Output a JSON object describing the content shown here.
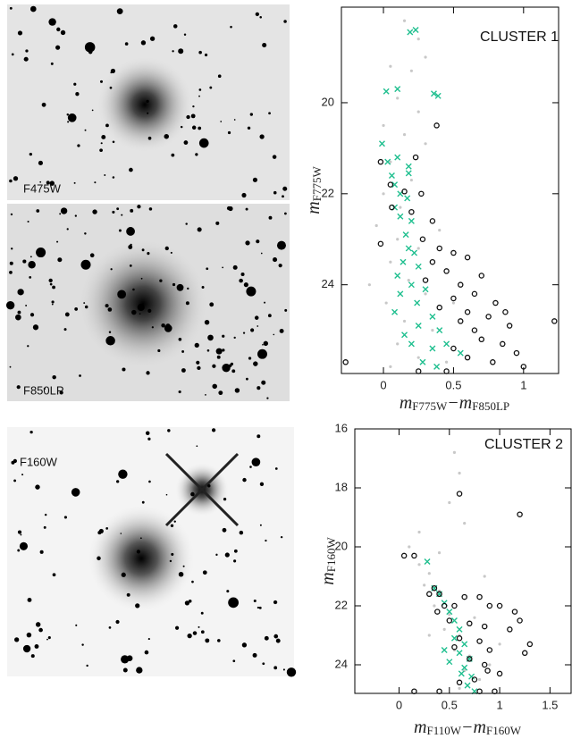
{
  "images": [
    {
      "label": "F475W"
    },
    {
      "label": "F850LP"
    },
    {
      "label": "F160W"
    }
  ],
  "chart_data": [
    {
      "type": "scatter",
      "title": "CLUSTER 1",
      "xlabel": [
        "m",
        "F775W",
        "−m",
        "F850LP"
      ],
      "ylabel": [
        "m",
        "F775W"
      ],
      "xlim": [
        -0.3,
        1.25
      ],
      "ylim": [
        25.95,
        17.9
      ],
      "xticks": [
        0,
        0.5,
        1
      ],
      "yticks": [
        20,
        22,
        24
      ],
      "series": [
        {
          "color": "#c8c8c8",
          "marker": "dot",
          "x": [
            0.15,
            0.25,
            0.05,
            0.2,
            0.1,
            0.25,
            0.0,
            0.15,
            0.3,
            0.05,
            0.2,
            0.0,
            0.12,
            -0.05,
            0.1,
            0.25,
            0.05,
            0.18,
            0.3,
            0.02,
            0.15,
            0.35,
            0.1,
            0.25,
            0.45,
            0.05,
            -0.1,
            0.5,
            0.4,
            0.3
          ],
          "values": [
            18.2,
            18.6,
            19.2,
            19.3,
            19.9,
            20.2,
            20.5,
            20.7,
            20.9,
            21.3,
            21.7,
            22.0,
            22.3,
            22.7,
            23.0,
            23.2,
            23.5,
            23.9,
            24.2,
            24.4,
            24.8,
            25.0,
            25.3,
            25.6,
            25.7,
            25.8,
            24.0,
            24.4,
            22.8,
            19.0
          ]
        },
        {
          "color": "#1fbf8f",
          "marker": "cross",
          "x": [
            0.19,
            0.23,
            0.02,
            0.1,
            0.36,
            0.39,
            -0.01,
            0.03,
            0.1,
            0.06,
            0.18,
            0.18,
            0.08,
            0.12,
            0.17,
            0.08,
            0.12,
            0.2,
            0.16,
            0.18,
            0.22,
            0.14,
            0.25,
            0.1,
            0.2,
            0.3,
            0.12,
            0.24,
            0.08,
            0.35,
            0.25,
            0.4,
            0.15,
            0.45,
            0.35,
            0.55,
            0.28,
            0.38,
            0.2
          ],
          "values": [
            18.45,
            18.4,
            19.75,
            19.7,
            19.8,
            19.85,
            20.9,
            21.3,
            21.2,
            21.6,
            21.4,
            21.55,
            21.8,
            22.0,
            22.1,
            22.3,
            22.5,
            22.6,
            22.9,
            23.2,
            23.3,
            23.5,
            23.6,
            23.8,
            24.0,
            24.1,
            24.2,
            24.4,
            24.6,
            24.7,
            24.9,
            25.0,
            25.1,
            25.3,
            25.4,
            25.5,
            25.7,
            25.8,
            25.3
          ]
        },
        {
          "color": "#111111",
          "marker": "circle",
          "x": [
            0.38,
            0.23,
            -0.02,
            0.05,
            0.15,
            0.27,
            0.2,
            0.35,
            0.06,
            -0.02,
            0.28,
            0.4,
            0.5,
            0.6,
            0.35,
            0.45,
            0.7,
            0.3,
            0.55,
            0.65,
            0.5,
            0.8,
            0.4,
            0.6,
            0.75,
            0.55,
            0.9,
            0.65,
            0.7,
            0.85,
            0.5,
            0.95,
            0.6,
            0.78,
            1.0,
            1.22,
            0.87,
            -0.27,
            0.45,
            0.25
          ],
          "values": [
            20.5,
            21.2,
            21.3,
            21.8,
            21.95,
            22.0,
            22.4,
            22.6,
            22.3,
            23.1,
            23.0,
            23.2,
            23.3,
            23.4,
            23.5,
            23.7,
            23.8,
            23.9,
            24.0,
            24.2,
            24.3,
            24.4,
            24.5,
            24.6,
            24.7,
            24.8,
            24.9,
            25.0,
            25.2,
            25.3,
            25.4,
            25.5,
            25.6,
            25.7,
            25.8,
            24.8,
            24.6,
            25.7,
            25.9,
            25.9
          ]
        }
      ]
    },
    {
      "type": "scatter",
      "title": "CLUSTER 2",
      "xlabel": [
        "m",
        "F110W",
        "−m",
        "F160W"
      ],
      "ylabel": [
        "m",
        "F160W"
      ],
      "xlim": [
        -0.44,
        1.71
      ],
      "ylim": [
        24.97,
        16
      ],
      "xticks": [
        0,
        0.5,
        1,
        1.5
      ],
      "yticks": [
        16,
        18,
        20,
        22,
        24
      ],
      "series": [
        {
          "color": "#c8c8c8",
          "marker": "dot",
          "x": [
            0.55,
            0.6,
            0.5,
            0.65,
            0.1,
            0.2,
            0.3,
            0.25,
            0.4,
            0.35,
            0.5,
            0.45,
            0.6,
            0.55,
            0.7,
            0.65,
            0.8,
            0.6,
            0.9,
            1.0,
            0.75,
            0.2,
            0.4,
            0.85,
            0.3
          ],
          "values": [
            16.8,
            17.5,
            18.5,
            19.2,
            20.0,
            20.6,
            20.9,
            21.3,
            21.5,
            22.0,
            22.3,
            22.8,
            23.0,
            23.5,
            23.7,
            24.2,
            24.5,
            24.8,
            24.0,
            23.3,
            22.4,
            19.5,
            20.2,
            21.0,
            23.0
          ]
        },
        {
          "color": "#1fbf8f",
          "marker": "cross",
          "x": [
            0.28,
            0.35,
            0.4,
            0.45,
            0.5,
            0.55,
            0.6,
            0.55,
            0.65,
            0.6,
            0.7,
            0.65,
            0.72,
            0.68,
            0.75,
            0.62,
            0.5,
            0.45
          ],
          "values": [
            20.5,
            21.4,
            21.6,
            21.9,
            22.2,
            22.5,
            22.8,
            23.1,
            23.3,
            23.6,
            23.8,
            24.1,
            24.4,
            24.7,
            24.9,
            24.3,
            23.9,
            23.5
          ]
        },
        {
          "color": "#111111",
          "marker": "circle",
          "x": [
            0.6,
            1.2,
            0.05,
            0.15,
            0.35,
            0.3,
            0.4,
            0.45,
            0.38,
            0.55,
            0.65,
            0.8,
            0.9,
            1.0,
            1.15,
            1.2,
            0.5,
            0.7,
            0.85,
            1.1,
            0.6,
            0.8,
            1.3,
            0.55,
            0.9,
            1.25,
            0.7,
            0.85,
            1.0,
            0.6,
            0.8,
            0.95,
            0.75,
            0.88,
            0.15,
            0.4
          ],
          "values": [
            18.2,
            18.9,
            20.3,
            20.3,
            21.4,
            21.6,
            21.6,
            22.0,
            22.2,
            22.0,
            21.7,
            21.7,
            22.0,
            22.0,
            22.2,
            22.5,
            22.5,
            22.6,
            22.7,
            22.8,
            23.1,
            23.2,
            23.3,
            23.4,
            23.5,
            23.6,
            23.8,
            24.0,
            24.3,
            24.6,
            24.9,
            24.9,
            24.5,
            24.2,
            24.9,
            24.9
          ]
        }
      ]
    }
  ]
}
